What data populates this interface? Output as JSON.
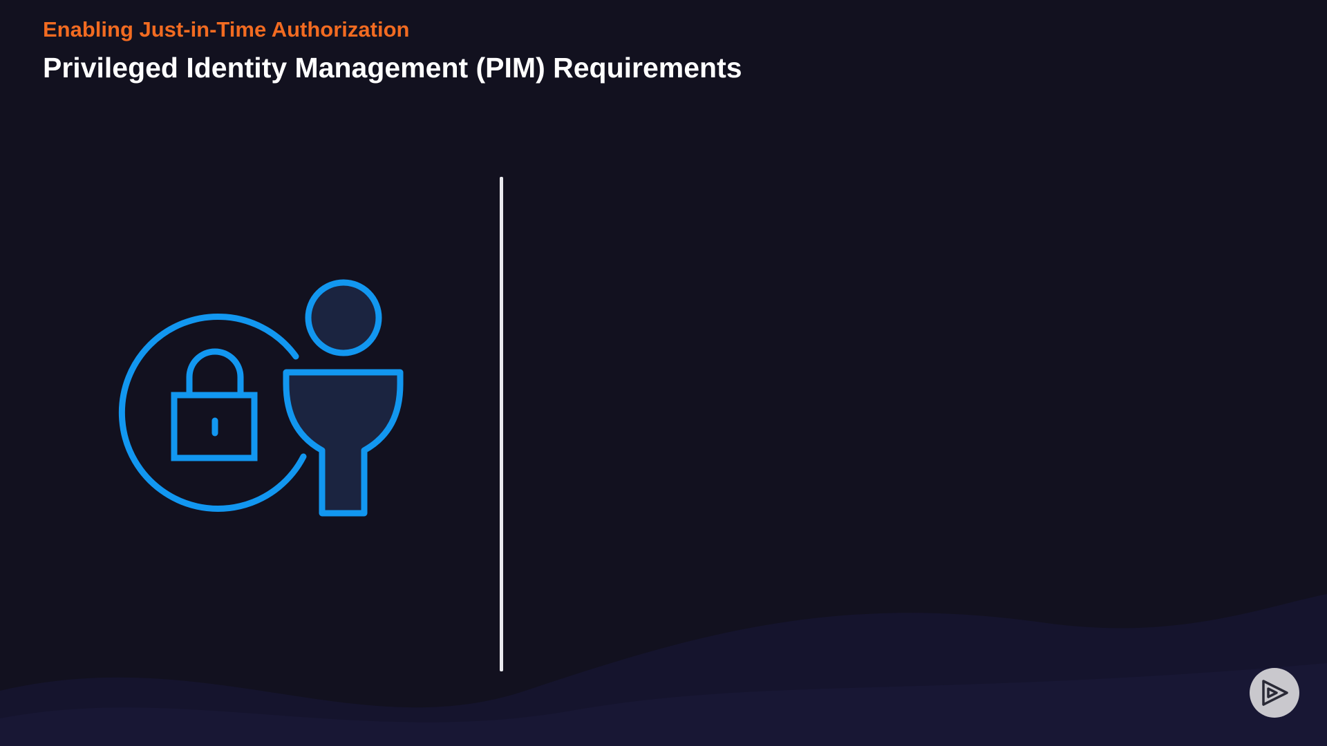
{
  "header": {
    "subtitle": "Enabling Just-in-Time Authorization",
    "title": "Privileged Identity Management (PIM) Requirements"
  },
  "colors": {
    "background": "#12111f",
    "accent_orange": "#f26b21",
    "icon_blue": "#1297f0",
    "icon_fill": "#1b2440",
    "divider": "#e9e9ee"
  },
  "icons": {
    "illustration": "lock-with-user-icon",
    "player": "pluralsight-play-icon"
  }
}
